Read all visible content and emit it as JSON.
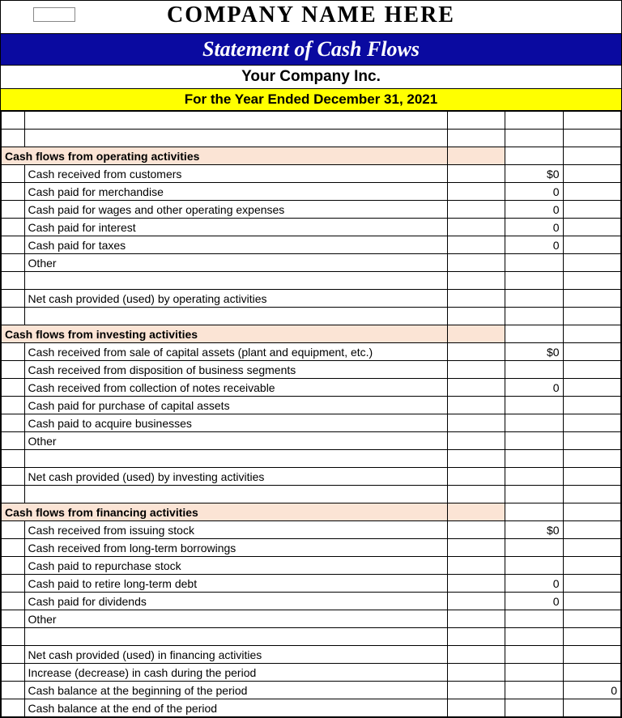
{
  "header": {
    "company_banner": "COMPANY NAME HERE",
    "title": "Statement of Cash Flows",
    "company_name": "Your Company Inc.",
    "period": "For the Year Ended December 31, 2021"
  },
  "colors": {
    "title_bg": "#0a0aa0",
    "title_fg": "#ffffff",
    "period_bg": "#ffff00",
    "section_bg": "#fbe4d5",
    "border": "#000000"
  },
  "sections": {
    "operating": {
      "heading": "Cash flows from operating activities",
      "rows": [
        {
          "label": "Cash received from customers",
          "amt1": "$0"
        },
        {
          "label": "Cash paid for merchandise",
          "amt1": "0"
        },
        {
          "label": "Cash paid for wages and other operating expenses",
          "amt1": "0"
        },
        {
          "label": "Cash paid for interest",
          "amt1": "0"
        },
        {
          "label": "Cash paid for taxes",
          "amt1": "0"
        },
        {
          "label": "Other",
          "amt1": ""
        }
      ],
      "net_label": "Net cash provided (used) by operating activities"
    },
    "investing": {
      "heading": "Cash flows from investing activities",
      "rows": [
        {
          "label": "Cash received from sale of capital assets (plant and equipment, etc.)",
          "amt1": "$0"
        },
        {
          "label": "Cash received from disposition of business segments",
          "amt1": ""
        },
        {
          "label": "Cash received from collection of notes receivable",
          "amt1": "0"
        },
        {
          "label": "Cash paid for purchase of capital assets",
          "amt1": ""
        },
        {
          "label": "Cash paid to acquire businesses",
          "amt1": ""
        },
        {
          "label": "Other",
          "amt1": ""
        }
      ],
      "net_label": "Net cash provided (used) by investing activities"
    },
    "financing": {
      "heading": "Cash flows from financing activities",
      "rows": [
        {
          "label": "Cash received from issuing stock",
          "amt1": "$0"
        },
        {
          "label": "Cash received from long-term borrowings",
          "amt1": ""
        },
        {
          "label": "Cash paid to repurchase stock",
          "amt1": ""
        },
        {
          "label": "Cash paid to retire long-term debt",
          "amt1": "0"
        },
        {
          "label": "Cash paid for dividends",
          "amt1": "0"
        },
        {
          "label": "Other",
          "amt1": ""
        }
      ],
      "net_label": "Net cash provided (used) in financing activities",
      "summary": [
        {
          "label": "Increase (decrease) in cash during the period",
          "amt2": ""
        },
        {
          "label": "Cash balance at the beginning of the period",
          "amt2": "0"
        },
        {
          "label": "Cash balance at the end of the period",
          "amt2": ""
        }
      ]
    }
  }
}
